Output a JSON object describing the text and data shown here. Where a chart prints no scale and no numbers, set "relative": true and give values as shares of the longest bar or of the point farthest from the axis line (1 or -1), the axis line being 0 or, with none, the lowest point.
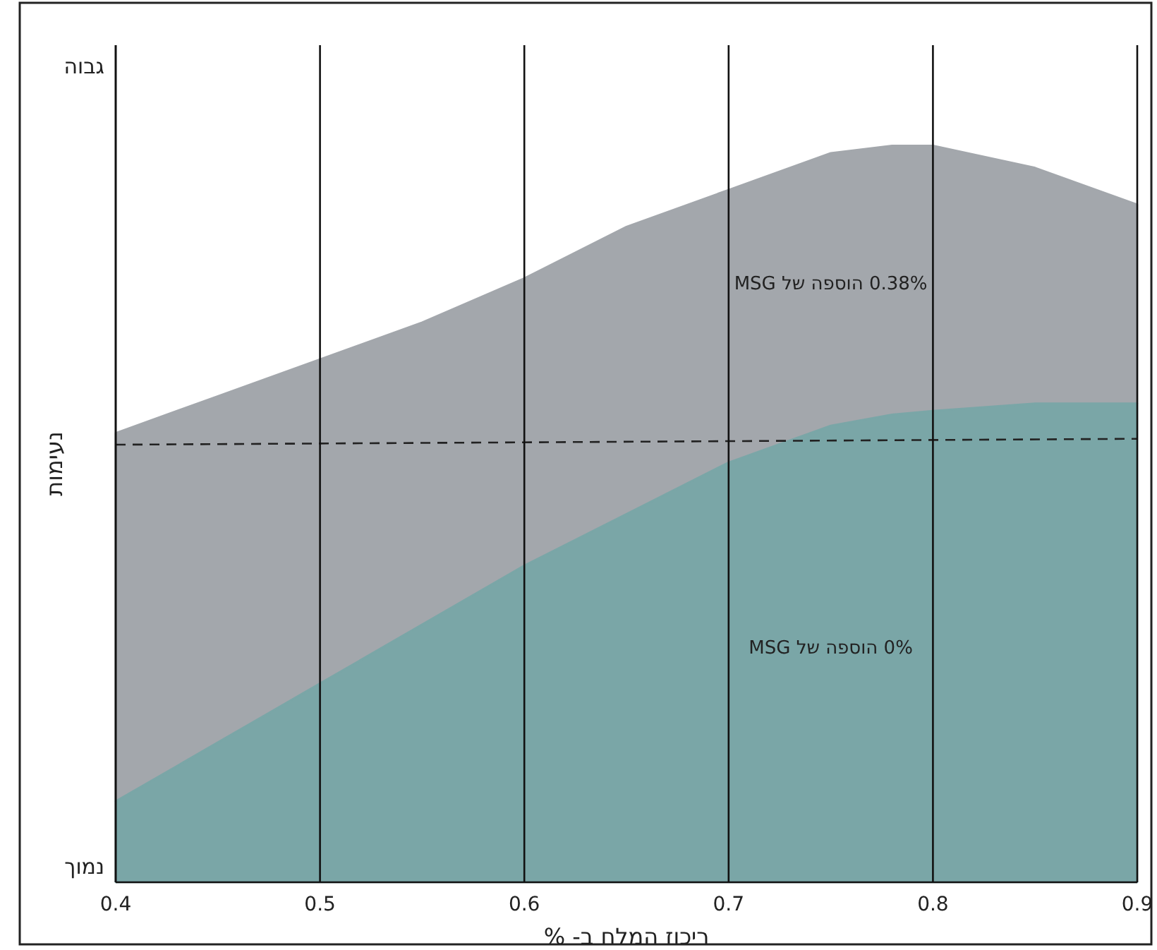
{
  "chart_data": {
    "type": "area",
    "relative": true,
    "xlabel": "ריכוז המלח ב- %",
    "ylabel": "נעימות",
    "x": [
      0.4,
      0.45,
      0.5,
      0.55,
      0.6,
      0.65,
      0.7,
      0.75,
      0.78,
      0.8,
      0.85,
      0.9
    ],
    "xlim": [
      0.4,
      0.9
    ],
    "xticks": [
      0.4,
      0.5,
      0.6,
      0.7,
      0.8,
      0.9
    ],
    "grid": "x",
    "series": [
      {
        "name": "0.38% הוספה של MSG",
        "color": "#a3a7ac",
        "values": [
          0.61,
          0.66,
          0.71,
          0.76,
          0.82,
          0.89,
          0.94,
          0.99,
          1,
          1,
          0.97,
          0.92
        ]
      },
      {
        "name": "0% הוספה של MSG",
        "color": "#7aa6a7",
        "values": [
          0.11,
          0.19,
          0.27,
          0.35,
          0.43,
          0.5,
          0.57,
          0.62,
          0.635,
          0.64,
          0.65,
          0.65
        ]
      },
      {
        "type": "line",
        "color": "#222222",
        "line_style": "dashed",
        "x": [
          0.4,
          0.9
        ],
        "values": [
          0.594,
          0.602
        ]
      }
    ],
    "annotations": [
      "גבוה",
      "נמוך"
    ],
    "legend": false
  }
}
